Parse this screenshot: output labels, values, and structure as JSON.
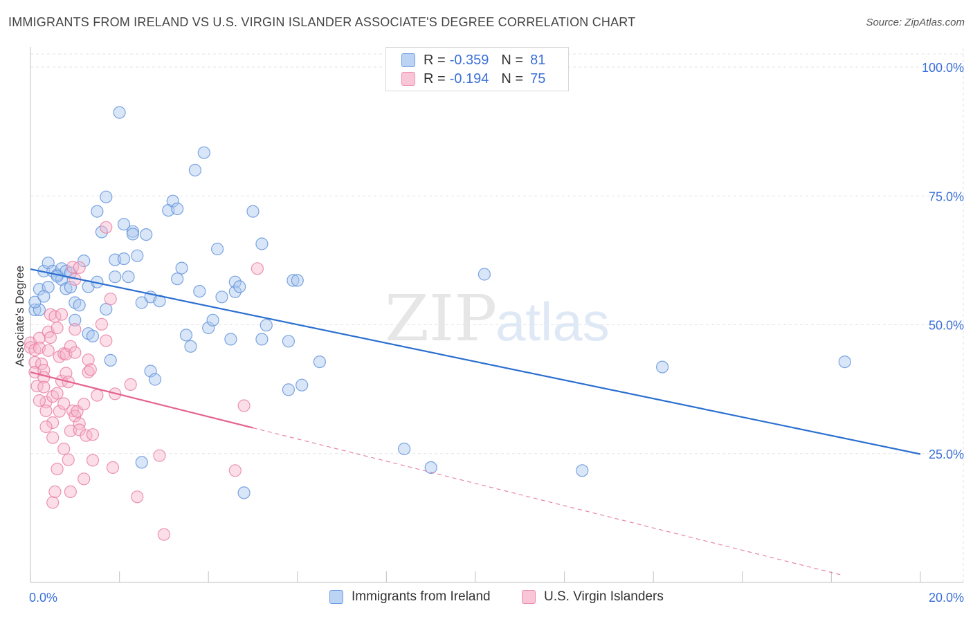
{
  "title": "IMMIGRANTS FROM IRELAND VS U.S. VIRGIN ISLANDER ASSOCIATE'S DEGREE CORRELATION CHART",
  "source": "Source: ZipAtlas.com",
  "colors": {
    "blue": "#5b8fd9",
    "blue_fill": "#aac8f0",
    "pink": "#e87aa0",
    "pink_fill": "#f6b6cc",
    "blue_line": "#2a6fd0",
    "pink_line": "#e4658f",
    "axis_text": "#3a6fd8"
  },
  "legend_top": [
    {
      "series": "blue",
      "r_label": "R =",
      "r_value": "-0.359",
      "n_label": "N =",
      "n_value": "81"
    },
    {
      "series": "pink",
      "r_label": "R =",
      "r_value": "-0.194",
      "n_label": "N =",
      "n_value": "75"
    }
  ],
  "legend_bottom": [
    {
      "series": "blue",
      "label": "Immigrants from Ireland"
    },
    {
      "series": "pink",
      "label": "U.S. Virgin Islanders"
    }
  ],
  "chart_data": {
    "type": "scatter",
    "title": "IMMIGRANTS FROM IRELAND VS U.S. VIRGIN ISLANDER ASSOCIATE'S DEGREE CORRELATION CHART",
    "xlabel": "",
    "ylabel": "Associate's Degree",
    "xlim": [
      0,
      20
    ],
    "ylim": [
      0,
      100
    ],
    "x_ticks_labels": [
      "0.0%",
      "20.0%"
    ],
    "y_ticks": [
      25,
      50,
      75,
      100
    ],
    "y_tick_labels": [
      "25.0%",
      "50.0%",
      "75.0%",
      "100.0%"
    ],
    "watermark": {
      "zip": "ZIP",
      "atlas": "atlas"
    },
    "series": [
      {
        "name": "Immigrants from Ireland",
        "color": "blue",
        "trend": {
          "x": [
            0,
            20
          ],
          "y": [
            60.8,
            24.9
          ],
          "dashed_to": null
        },
        "points": [
          [
            0.1,
            52.9
          ],
          [
            0.2,
            52.9
          ],
          [
            0.2,
            56.9
          ],
          [
            0.3,
            60.4
          ],
          [
            0.4,
            62.0
          ],
          [
            0.4,
            57.3
          ],
          [
            0.5,
            60.4
          ],
          [
            0.6,
            59.7
          ],
          [
            0.7,
            58.8
          ],
          [
            0.7,
            60.9
          ],
          [
            0.8,
            57.0
          ],
          [
            0.8,
            60.4
          ],
          [
            0.9,
            57.3
          ],
          [
            0.9,
            60.1
          ],
          [
            1.0,
            54.3
          ],
          [
            1.1,
            53.8
          ],
          [
            1.2,
            62.4
          ],
          [
            1.3,
            57.4
          ],
          [
            1.3,
            48.3
          ],
          [
            1.4,
            47.8
          ],
          [
            1.5,
            58.3
          ],
          [
            1.5,
            72.0
          ],
          [
            1.6,
            68.0
          ],
          [
            1.7,
            74.8
          ],
          [
            1.7,
            53.0
          ],
          [
            1.8,
            43.1
          ],
          [
            1.9,
            62.6
          ],
          [
            1.9,
            59.3
          ],
          [
            2.0,
            91.2
          ],
          [
            2.1,
            62.8
          ],
          [
            2.1,
            69.5
          ],
          [
            2.2,
            59.3
          ],
          [
            2.3,
            68.1
          ],
          [
            2.3,
            67.6
          ],
          [
            2.4,
            63.4
          ],
          [
            2.5,
            54.3
          ],
          [
            2.5,
            23.3
          ],
          [
            2.6,
            67.5
          ],
          [
            2.7,
            55.4
          ],
          [
            2.7,
            41.0
          ],
          [
            2.8,
            39.4
          ],
          [
            2.9,
            54.6
          ],
          [
            3.1,
            72.2
          ],
          [
            3.2,
            74.0
          ],
          [
            3.3,
            72.5
          ],
          [
            3.3,
            58.9
          ],
          [
            3.4,
            61.0
          ],
          [
            3.5,
            48.0
          ],
          [
            3.6,
            45.8
          ],
          [
            3.7,
            80.0
          ],
          [
            3.8,
            56.5
          ],
          [
            3.9,
            83.4
          ],
          [
            4.0,
            49.4
          ],
          [
            4.1,
            50.9
          ],
          [
            4.2,
            64.7
          ],
          [
            4.3,
            55.4
          ],
          [
            4.5,
            47.2
          ],
          [
            4.6,
            58.3
          ],
          [
            4.6,
            56.4
          ],
          [
            4.7,
            57.4
          ],
          [
            4.8,
            17.4
          ],
          [
            5.0,
            72.0
          ],
          [
            5.2,
            47.2
          ],
          [
            5.2,
            65.7
          ],
          [
            5.3,
            49.9
          ],
          [
            5.8,
            37.4
          ],
          [
            5.8,
            46.8
          ],
          [
            5.9,
            58.6
          ],
          [
            6.0,
            58.6
          ],
          [
            6.1,
            38.3
          ],
          [
            6.5,
            42.8
          ],
          [
            8.4,
            25.9
          ],
          [
            9.0,
            22.3
          ],
          [
            10.2,
            59.8
          ],
          [
            12.4,
            21.7
          ],
          [
            14.2,
            41.8
          ],
          [
            18.3,
            42.8
          ],
          [
            0.1,
            54.4
          ],
          [
            0.3,
            55.5
          ],
          [
            0.6,
            59.4
          ],
          [
            1.0,
            50.9
          ]
        ]
      },
      {
        "name": "U.S. Virgin Islanders",
        "color": "pink",
        "trend": {
          "x": [
            0,
            5
          ],
          "y": [
            40.8,
            30.0
          ],
          "dashed_to": [
            18.2,
            1.5
          ]
        },
        "points": [
          [
            0.0,
            46.5
          ],
          [
            0.0,
            45.6
          ],
          [
            0.1,
            45.1
          ],
          [
            0.1,
            42.7
          ],
          [
            0.1,
            40.8
          ],
          [
            0.15,
            38.1
          ],
          [
            0.2,
            47.4
          ],
          [
            0.2,
            45.5
          ],
          [
            0.25,
            42.4
          ],
          [
            0.3,
            41.2
          ],
          [
            0.3,
            39.8
          ],
          [
            0.3,
            37.9
          ],
          [
            0.35,
            35.0
          ],
          [
            0.35,
            33.3
          ],
          [
            0.4,
            48.6
          ],
          [
            0.4,
            45.0
          ],
          [
            0.45,
            47.5
          ],
          [
            0.45,
            52.0
          ],
          [
            0.5,
            36.1
          ],
          [
            0.5,
            31.0
          ],
          [
            0.5,
            28.1
          ],
          [
            0.5,
            15.5
          ],
          [
            0.55,
            51.6
          ],
          [
            0.55,
            17.6
          ],
          [
            0.6,
            49.4
          ],
          [
            0.6,
            36.7
          ],
          [
            0.65,
            43.8
          ],
          [
            0.65,
            33.2
          ],
          [
            0.7,
            39.1
          ],
          [
            0.7,
            52.0
          ],
          [
            0.75,
            44.4
          ],
          [
            0.75,
            34.7
          ],
          [
            0.8,
            44.3
          ],
          [
            0.8,
            40.6
          ],
          [
            0.85,
            38.9
          ],
          [
            0.85,
            23.8
          ],
          [
            0.9,
            45.8
          ],
          [
            0.9,
            29.4
          ],
          [
            0.9,
            17.6
          ],
          [
            0.95,
            61.2
          ],
          [
            0.95,
            33.3
          ],
          [
            1.0,
            49.1
          ],
          [
            1.0,
            44.6
          ],
          [
            1.0,
            32.3
          ],
          [
            1.05,
            33.2
          ],
          [
            1.1,
            61.1
          ],
          [
            1.1,
            30.8
          ],
          [
            1.1,
            29.6
          ],
          [
            1.2,
            34.6
          ],
          [
            1.2,
            20.1
          ],
          [
            1.25,
            28.5
          ],
          [
            1.3,
            43.2
          ],
          [
            1.3,
            40.8
          ],
          [
            1.35,
            41.3
          ],
          [
            1.4,
            28.7
          ],
          [
            1.4,
            23.7
          ],
          [
            1.5,
            36.3
          ],
          [
            1.6,
            50.1
          ],
          [
            1.7,
            68.9
          ],
          [
            1.7,
            46.9
          ],
          [
            1.8,
            55.0
          ],
          [
            1.85,
            22.3
          ],
          [
            1.9,
            36.6
          ],
          [
            2.25,
            38.4
          ],
          [
            2.4,
            16.6
          ],
          [
            2.9,
            24.6
          ],
          [
            3.0,
            9.3
          ],
          [
            4.6,
            21.7
          ],
          [
            4.8,
            34.3
          ],
          [
            5.1,
            60.9
          ],
          [
            0.2,
            35.3
          ],
          [
            0.35,
            30.2
          ],
          [
            0.6,
            22.0
          ],
          [
            0.75,
            25.9
          ],
          [
            1.0,
            58.8
          ]
        ]
      }
    ]
  }
}
